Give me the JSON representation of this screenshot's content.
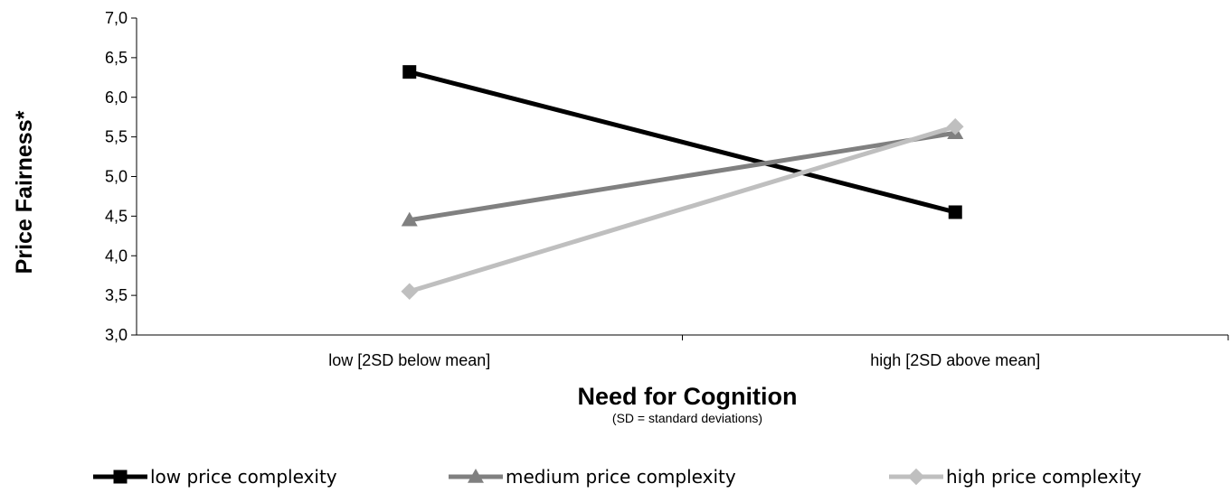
{
  "chart_data": {
    "type": "line",
    "categories": [
      "low [2SD below mean]",
      "high [2SD above mean]"
    ],
    "series": [
      {
        "name": "low price complexity",
        "values": [
          6.32,
          4.55
        ],
        "color": "#000000",
        "marker": "square"
      },
      {
        "name": "medium price complexity",
        "values": [
          4.45,
          5.55
        ],
        "color": "#808080",
        "marker": "triangle"
      },
      {
        "name": "high price complexity",
        "values": [
          3.55,
          5.63
        ],
        "color": "#bfbfbf",
        "marker": "diamond"
      }
    ],
    "xlabel": "Need for Cognition",
    "xlabel_sub": "(SD = standard deviations)",
    "ylabel": "Price Fairness*",
    "ylim": [
      3.0,
      7.0
    ],
    "yticks": [
      "3,0",
      "3,5",
      "4,0",
      "4,5",
      "5,0",
      "5,5",
      "6,0",
      "6,5",
      "7,0"
    ],
    "legend_position": "bottom",
    "grid": false
  }
}
